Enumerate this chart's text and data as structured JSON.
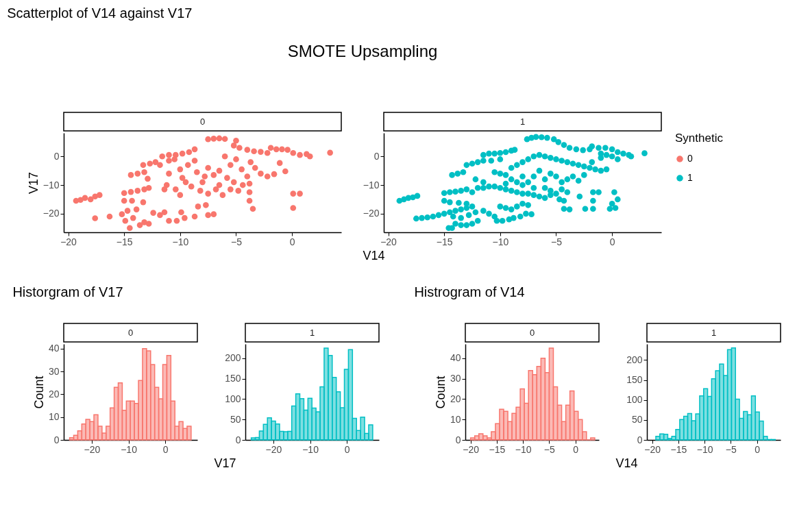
{
  "chart_data": [
    {
      "type": "scatter",
      "title": "SMOTE Upsampling",
      "subtitle": "Scatterplot of V14 against V17",
      "annotations": [
        "0"
      ],
      "ylabel": "V17",
      "marker": "circle",
      "legend": "right",
      "xlim": [
        -20.4,
        4.4
      ],
      "xticks": [
        -20,
        -15,
        -10,
        -5,
        0
      ],
      "ylim": [
        -26.5,
        8.2
      ],
      "yticks": [
        -20,
        -10,
        0
      ],
      "series": [
        {
          "name": "0",
          "color": "#f8766d",
          "x": [
            -19.3,
            -18.9,
            -18.5,
            -18.0,
            -17.6,
            -17.2,
            -17.6,
            -16.3,
            -15.2,
            -14.9,
            -14.5,
            -14.7,
            -14.2,
            -13.9,
            -13.6,
            -13.2,
            -12.8,
            -12.4,
            -15.0,
            -14.3,
            -13.3,
            -11.8,
            -11.4,
            -11.0,
            -10.3,
            -9.9,
            -9.6,
            -8.7,
            -8.4,
            -7.5,
            -7.0,
            -7.7,
            -15.0,
            -14.4,
            -13.8,
            -13.2,
            -12.8,
            -14.4,
            -13.8,
            -13.2,
            -12.9,
            -13.3,
            -12.7,
            -12.2,
            -11.8,
            -11.6,
            -11.0,
            -10.4,
            -9.8,
            -9.2,
            -8.7,
            -11.0,
            -10.5,
            -11.2,
            -11.4,
            -11.0,
            -10.0,
            -9.8,
            -10.4,
            -10.0,
            -9.3,
            -8.7,
            -8.5,
            -8.0,
            -7.5,
            -7.0,
            -6.5,
            -6.0,
            -5.5,
            -5.0,
            -4.5,
            -4.0,
            -3.7,
            -3.3,
            -2.8,
            -2.2,
            -1.6,
            -0.6,
            -9.0,
            -8.2,
            -7.5,
            -6.8,
            -6.2,
            -5.5,
            -4.8,
            -4.4,
            -3.8,
            -7.8,
            -6.5,
            -5.8,
            -5.2,
            -9.5,
            -7.5,
            -7.0,
            -6.5,
            -6.0,
            -5.0,
            -5.2,
            -4.7,
            -4.0,
            -3.4,
            -2.8,
            -2.2,
            -1.9,
            -1.4,
            -0.9,
            -0.4,
            0.1,
            0.7,
            1.3,
            1.6,
            3.4,
            -1.1,
            -3.8,
            -3.8,
            -3.5,
            0.1,
            0.7,
            0.1
          ],
          "values": [
            -15.5,
            -15.2,
            -14.5,
            -15,
            -14,
            -13.5,
            -21.6,
            -21,
            -20.2,
            -22.5,
            -25,
            -19,
            -21.5,
            -18.5,
            -24,
            -23,
            -23.5,
            -19.7,
            -15.5,
            -15.5,
            -16,
            -20.5,
            -19.5,
            -22.5,
            -22.5,
            -19.5,
            -21.5,
            -21,
            -17.5,
            -20.5,
            -20.2,
            -17,
            -12.8,
            -12.4,
            -12,
            -11.5,
            -11,
            -6.5,
            -6,
            -5.5,
            -7.8,
            -3,
            -2.5,
            -2,
            -3,
            0,
            0.5,
            0.5,
            1,
            1.5,
            2.5,
            -1.5,
            -1,
            -10,
            -11.5,
            -6,
            -4.5,
            -7.5,
            -11.5,
            -13.5,
            -3,
            -1.5,
            -5.5,
            -9,
            -4,
            -6.5,
            -10,
            0,
            -3,
            -1,
            -4.5,
            -7,
            -2,
            -4,
            -6,
            -7,
            -6.2,
            -5.2,
            -10.5,
            -12,
            -13,
            -11.5,
            -13.5,
            -11.5,
            -12,
            -10,
            -9.5,
            -7,
            -5,
            -7.5,
            -9,
            -9,
            6,
            6.2,
            6.3,
            6.1,
            5.5,
            3.8,
            3,
            2.3,
            1.8,
            1.6,
            1.2,
            3,
            2.5,
            2.5,
            2.3,
            1.2,
            0.5,
            0.8,
            0,
            1.3,
            -2.3,
            -12.5,
            -15.5,
            -18.3,
            -13,
            -13,
            -18
          ]
        }
      ]
    },
    {
      "type": "scatter",
      "annotations": [
        "1"
      ],
      "xlabel": "V14",
      "marker": "circle",
      "legend": "right",
      "legend_title": "Synthetic",
      "xlim": [
        -20.4,
        4.4
      ],
      "xticks": [
        -20,
        -15,
        -10,
        -5,
        0
      ],
      "ylim": [
        -26.5,
        8.2
      ],
      "yticks": [
        -20,
        -10,
        0
      ],
      "series": [
        {
          "name": "1",
          "color": "#00bfc4",
          "x": [
            -19.0,
            -18.6,
            -18.2,
            -17.8,
            -17.4,
            -17.5,
            -17,
            -16.5,
            -16,
            -15.5,
            -15,
            -14.5,
            -14,
            -13.5,
            -13,
            -12.5,
            -14.6,
            -14.3,
            -14,
            -13.5,
            -13,
            -12.5,
            -12,
            -14.2,
            -13.5,
            -12.8,
            -12.2,
            -11.5,
            -11,
            -10.5,
            -10.3,
            -9.8,
            -9.2,
            -8.8,
            -8.2,
            -7.7,
            -7.2,
            -10,
            -9.5,
            -9,
            -8.5,
            -8,
            -7.5,
            -15,
            -14.5,
            -13.7,
            -13,
            -15,
            -14.5,
            -14,
            -13.5,
            -13,
            -12.5,
            -12,
            -11.5,
            -11,
            -10.5,
            -10,
            -9.5,
            -9,
            -8.5,
            -8,
            -7.5,
            -7,
            -6.5,
            -6,
            -5.5,
            -5,
            -4.7,
            -12.2,
            -11.5,
            -14.3,
            -13.8,
            -13.3,
            -13,
            -12.5,
            -12,
            -11.5,
            -11.5,
            -11,
            -10.5,
            -10,
            -9.5,
            -9,
            -8.7,
            -10.8,
            -10,
            -10.5,
            -10,
            -9.5,
            -9,
            -8.5,
            -8,
            -7.5,
            -7,
            -6.5,
            -6,
            -5.5,
            -5,
            -4.5,
            -4,
            -3.5,
            -3,
            -2.5,
            -2,
            -1.5,
            -1,
            -0.5,
            -9,
            -8.5,
            -8,
            -7.5,
            -7,
            -6.5,
            -6,
            -5.5,
            -5,
            -4.5,
            -4,
            -3.5,
            -3,
            -2.5,
            -6,
            -5.5,
            -4.5,
            -7,
            -8,
            -9.5,
            -7.6,
            -7.2,
            -6.8,
            -6.3,
            -5.8,
            -5.2,
            -4.8,
            -4.3,
            -3.8,
            -3.2,
            -2.6,
            -2,
            -1.8,
            -1.2,
            -0.6,
            0,
            0.5,
            1,
            1.5,
            1.7,
            -1,
            -0.5,
            0,
            0.5,
            -1.8,
            -1,
            2.9,
            -4,
            -4.3,
            -4.3,
            -3.8,
            -2.9,
            -2.4,
            -1.7,
            -1.2,
            -1.7,
            -1.7,
            0.2,
            0.5,
            0,
            -0.2,
            0.3
          ],
          "values": [
            -15.5,
            -15,
            -14.5,
            -14.3,
            -13.8,
            -21.7,
            -21.5,
            -21.3,
            -21,
            -20.5,
            -20,
            -19.5,
            -19,
            -18.5,
            -18,
            -17.5,
            -25,
            -25,
            -23.5,
            -24,
            -24,
            -23.5,
            -22.5,
            -21,
            -21.5,
            -20.5,
            -19.5,
            -19,
            -20,
            -21,
            -22.5,
            -22.5,
            -22,
            -21.5,
            -21,
            -20,
            -20.2,
            -17.5,
            -18,
            -18.5,
            -17.5,
            -16.5,
            -17,
            -15.5,
            -16,
            -16.2,
            -16.5,
            -12.8,
            -12.5,
            -12.3,
            -12,
            -11.5,
            -12.5,
            -11,
            -11,
            -10.5,
            -10.5,
            -11,
            -11.5,
            -12,
            -12.5,
            -13,
            -13,
            -13.5,
            -14,
            -14.5,
            -13.5,
            -13,
            -15,
            -8,
            -9,
            -6.5,
            -6,
            -5.5,
            -3,
            -2.5,
            -2,
            -1.5,
            0.5,
            1,
            1,
            1.2,
            1.5,
            2,
            2.3,
            -1.5,
            -1,
            -5.5,
            -6,
            -6.5,
            -4,
            -3,
            -2,
            -1,
            0,
            0.5,
            0,
            -0.5,
            -1,
            -1.5,
            -2,
            -2.5,
            -3,
            -3.5,
            -4,
            -4.5,
            -5,
            -4.5,
            -8,
            -9,
            -10,
            -9,
            -7,
            -5,
            -8,
            -6,
            -7,
            -9,
            -8,
            -7,
            -8.5,
            -6.5,
            -11,
            -12,
            -11.5,
            -11,
            -7,
            -9.5,
            6,
            6.5,
            6.8,
            6.7,
            6.5,
            6,
            5,
            4,
            3,
            2.5,
            2.2,
            2.5,
            3.5,
            3,
            3,
            2.5,
            1.5,
            1,
            0.5,
            0,
            1,
            0.5,
            0,
            -1,
            -2,
            -0.5,
            1.1,
            -12.5,
            -15.5,
            -18.3,
            -18.5,
            -14,
            -18.3,
            -12.5,
            -12.5,
            -15.5,
            -18.3,
            -12.5,
            -15,
            -16.5,
            -18.3,
            -18
          ]
        }
      ]
    },
    {
      "type": "histogram",
      "title": "Historgram of V17",
      "annotations": [
        "0"
      ],
      "ylabel": "Count",
      "color": "#f8766d",
      "xlim": [
        -27.6,
        8.7
      ],
      "xticks": [
        -20,
        -10,
        0
      ],
      "ylim": [
        0,
        42
      ],
      "yticks": [
        0,
        10,
        20,
        30,
        40
      ],
      "bins": [
        -26.0,
        -24.9,
        -23.8,
        -22.7,
        -21.6,
        -20.5,
        -19.4,
        -18.3,
        -17.2,
        -16.1,
        -15.0,
        -13.9,
        -12.8,
        -11.7,
        -10.6,
        -9.5,
        -8.4,
        -7.3,
        -6.2,
        -5.1,
        -4.0,
        -2.9,
        -1.8,
        -0.7,
        0.4,
        1.5,
        2.6,
        3.7,
        4.8,
        5.9,
        7.0
      ],
      "values": [
        1,
        2,
        4,
        7,
        9,
        8,
        11,
        6,
        3,
        6,
        14,
        23,
        25,
        13,
        17,
        17,
        16,
        26,
        40,
        39,
        33,
        23,
        18,
        33,
        37,
        17,
        6,
        8,
        5,
        6
      ]
    },
    {
      "type": "histogram",
      "annotations": [
        "1"
      ],
      "xlabel": "V17",
      "color": "#00bfc4",
      "xlim": [
        -27.6,
        8.7
      ],
      "xticks": [
        -20,
        -10,
        0
      ],
      "ylim": [
        0,
        235
      ],
      "yticks": [
        0,
        50,
        100,
        150,
        200
      ],
      "bins": [
        -26.0,
        -24.9,
        -23.8,
        -22.7,
        -21.6,
        -20.5,
        -19.4,
        -18.3,
        -17.2,
        -16.1,
        -15.0,
        -13.9,
        -12.8,
        -11.7,
        -10.6,
        -9.5,
        -8.4,
        -7.3,
        -6.2,
        -5.1,
        -4.0,
        -2.9,
        -1.8,
        -0.7,
        0.4,
        1.5,
        2.6,
        3.7,
        4.8,
        5.9,
        7.0
      ],
      "values": [
        5,
        6,
        22,
        38,
        54,
        46,
        39,
        21,
        20,
        21,
        83,
        113,
        101,
        73,
        102,
        78,
        69,
        130,
        225,
        207,
        153,
        118,
        79,
        173,
        221,
        53,
        23,
        56,
        16,
        37
      ]
    },
    {
      "type": "histogram",
      "title": "Histrogram of V14",
      "annotations": [
        "0"
      ],
      "ylabel": "Count",
      "color": "#f8766d",
      "xlim": [
        -21,
        4.5
      ],
      "xticks": [
        -20,
        -15,
        -10,
        -5,
        0
      ],
      "ylim": [
        0,
        47
      ],
      "yticks": [
        0,
        10,
        20,
        30,
        40
      ],
      "bins": [
        -20.0,
        -19.21,
        -18.42,
        -17.63,
        -16.84,
        -16.05,
        -15.26,
        -14.47,
        -13.68,
        -12.89,
        -12.1,
        -11.31,
        -10.52,
        -9.73,
        -8.94,
        -8.15,
        -7.36,
        -6.57,
        -5.78,
        -4.99,
        -4.2,
        -3.41,
        -2.62,
        -1.83,
        -1.04,
        -0.25,
        0.54,
        1.33,
        2.12,
        2.91,
        3.7
      ],
      "values": [
        1,
        2,
        3,
        2,
        1,
        4,
        8,
        15,
        14,
        9,
        13,
        16,
        25,
        18,
        34,
        32,
        36,
        40,
        33,
        45,
        26,
        17,
        9,
        17,
        24,
        14,
        10,
        4,
        0,
        1
      ]
    },
    {
      "type": "histogram",
      "annotations": [
        "1"
      ],
      "xlabel": "V14",
      "color": "#00bfc4",
      "xlim": [
        -21,
        4.5
      ],
      "xticks": [
        -20,
        -15,
        -10,
        -5,
        0
      ],
      "ylim": [
        0,
        240
      ],
      "yticks": [
        0,
        50,
        100,
        150,
        200
      ],
      "bins": [
        -19.3,
        -18.54,
        -17.78,
        -17.02,
        -16.26,
        -15.5,
        -14.74,
        -13.98,
        -13.22,
        -12.46,
        -11.7,
        -10.94,
        -10.18,
        -9.42,
        -8.66,
        -7.9,
        -7.14,
        -6.38,
        -5.62,
        -4.86,
        -4.1,
        -3.34,
        -2.58,
        -1.82,
        -1.06,
        -0.3,
        0.46,
        1.22,
        1.98,
        2.74,
        3.5
      ],
      "values": [
        9,
        15,
        14,
        4,
        9,
        26,
        51,
        59,
        66,
        48,
        65,
        110,
        128,
        109,
        153,
        173,
        190,
        161,
        226,
        230,
        102,
        54,
        71,
        63,
        110,
        70,
        47,
        9,
        1,
        1
      ]
    }
  ]
}
